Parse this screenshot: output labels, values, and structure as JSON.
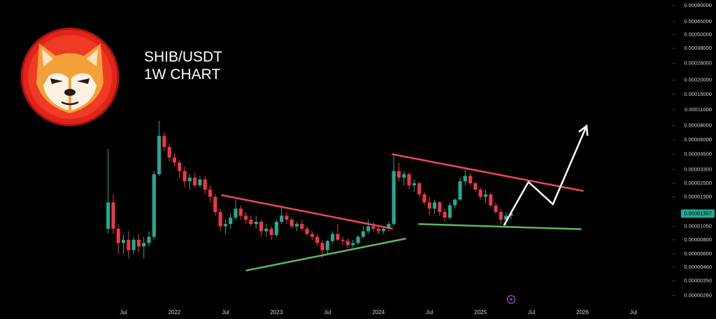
{
  "chart_data": {
    "type": "candlestick",
    "title": "SHIB/USDT",
    "subtitle": "1W CHART",
    "log_scale": true,
    "up_color": "#22ab94",
    "down_color": "#f23645",
    "xlim": [
      2020.29,
      2026.87
    ],
    "xticks": [
      {
        "value": 2021.5,
        "label": "Jul"
      },
      2022,
      {
        "value": 2022.5,
        "label": "Jul"
      },
      2023,
      {
        "value": 2023.5,
        "label": "Jul"
      },
      2024,
      {
        "value": 2024.5,
        "label": "Jul"
      },
      2025,
      {
        "value": 2025.5,
        "label": "Jul"
      },
      2026,
      {
        "value": 2026.5,
        "label": "Jul"
      }
    ],
    "ylim": [
      2.03e-06,
      0.001007
    ],
    "yticks": [
      {
        "value": 0.0009,
        "label": "0.00090000"
      },
      {
        "value": 0.00065,
        "label": "0.00065000"
      },
      {
        "value": 0.0005,
        "label": "0.00050000"
      },
      {
        "value": 0.00038,
        "label": "0.00038000"
      },
      {
        "value": 0.00028,
        "label": "0.00028000"
      },
      {
        "value": 0.0002,
        "label": "0.00020000"
      },
      {
        "value": 0.00015,
        "label": "0.00015000"
      },
      {
        "value": 0.00011,
        "label": "0.00011000"
      },
      {
        "value": 8e-05,
        "label": "0.00008000"
      },
      {
        "value": 6e-05,
        "label": "0.00006000"
      },
      {
        "value": 4.5e-05,
        "label": "0.00004500"
      },
      {
        "value": 3.3e-05,
        "label": "0.00003300"
      },
      {
        "value": 2.5e-05,
        "label": "0.00002500"
      },
      {
        "value": 1.9e-05,
        "label": "0.00001900"
      },
      {
        "value": 1.05e-05,
        "label": "0.00001050"
      },
      {
        "value": 8e-06,
        "label": "0.00000800"
      },
      {
        "value": 6e-06,
        "label": "0.00000600"
      },
      {
        "value": 4.6e-06,
        "label": "0.00000460"
      },
      {
        "value": 3.5e-06,
        "label": "0.00000350"
      },
      {
        "value": 2.6e-06,
        "label": "0.00000260"
      }
    ],
    "last_price_label": "0.00001357",
    "x": [
      2021.35,
      2021.4,
      2021.45,
      2021.5,
      2021.55,
      2021.6,
      2021.65,
      2021.7,
      2021.75,
      2021.8,
      2021.85,
      2021.9,
      2021.95,
      2022.0,
      2022.05,
      2022.1,
      2022.15,
      2022.2,
      2022.25,
      2022.3,
      2022.35,
      2022.4,
      2022.45,
      2022.5,
      2022.55,
      2022.6,
      2022.65,
      2022.7,
      2022.75,
      2022.8,
      2022.85,
      2022.9,
      2022.95,
      2023.0,
      2023.05,
      2023.1,
      2023.15,
      2023.2,
      2023.25,
      2023.3,
      2023.35,
      2023.4,
      2023.45,
      2023.5,
      2023.55,
      2023.6,
      2023.65,
      2023.7,
      2023.75,
      2023.8,
      2023.85,
      2023.9,
      2023.95,
      2024.0,
      2024.05,
      2024.1,
      2024.15,
      2024.2,
      2024.25,
      2024.3,
      2024.35,
      2024.4,
      2024.45,
      2024.5,
      2024.55,
      2024.6,
      2024.65,
      2024.7,
      2024.75,
      2024.8,
      2024.85,
      2024.9,
      2024.95,
      2025.0,
      2025.05,
      2025.1,
      2025.15,
      2025.2,
      2025.25,
      2025.3
    ],
    "open": [
      1e-05,
      1.7e-05,
      1e-05,
      7.5e-06,
      8e-06,
      6.5e-06,
      8e-06,
      7e-06,
      7.5e-06,
      8.5e-06,
      3e-05,
      6.5e-05,
      5.2e-05,
      4.2e-05,
      3.8e-05,
      3.2e-05,
      2.6e-05,
      2.8e-05,
      2.4e-05,
      2.7e-05,
      2.2e-05,
      1.9e-05,
      1.4e-05,
      1.05e-05,
      1.1e-05,
      1.25e-05,
      1.5e-05,
      1.3e-05,
      1.2e-05,
      1.1e-05,
      1.15e-05,
      9.5e-06,
      1e-05,
      8.8e-06,
      1.15e-05,
      1.3e-05,
      1.2e-05,
      1.05e-05,
      1.1e-05,
      1e-05,
      9e-06,
      8.5e-06,
      7.5e-06,
      6.5e-06,
      7.8e-06,
      9e-06,
      8e-06,
      7.8e-06,
      7.2e-06,
      7.5e-06,
      8.5e-06,
      9.5e-06,
      1.05e-05,
      1e-05,
      9.5e-06,
      1e-05,
      1.1e-05,
      3.2e-05,
      2.8e-05,
      3e-05,
      2.4e-05,
      2.5e-05,
      2e-05,
      1.7e-05,
      1.5e-05,
      1.7e-05,
      1.4e-05,
      1.25e-05,
      1.6e-05,
      1.8e-05,
      2.6e-05,
      2.9e-05,
      2.5e-05,
      2.2e-05,
      1.9e-05,
      2e-05,
      1.6e-05,
      1.4e-05,
      1.2e-05,
      1.3e-05
    ],
    "high": [
      5e-05,
      2e-05,
      1.1e-05,
      9e-06,
      9.5e-06,
      8.5e-06,
      9e-06,
      8.5e-06,
      9.5e-06,
      3.2e-05,
      8.8e-05,
      7e-05,
      5.6e-05,
      4.6e-05,
      4e-05,
      3.5e-05,
      3e-05,
      3.1e-05,
      2.9e-05,
      2.9e-05,
      2.4e-05,
      2e-05,
      1.5e-05,
      1.2e-05,
      1.35e-05,
      1.8e-05,
      1.6e-05,
      1.4e-05,
      1.3e-05,
      1.3e-05,
      1.2e-05,
      1.1e-05,
      1.05e-05,
      1.2e-05,
      1.6e-05,
      1.4e-05,
      1.25e-05,
      1.15e-05,
      1.2e-05,
      1.05e-05,
      9.5e-06,
      9e-06,
      8e-06,
      8e-06,
      9.5e-06,
      1.1e-05,
      8.5e-06,
      8.2e-06,
      8e-06,
      8.8e-06,
      1.05e-05,
      1.2e-05,
      1.15e-05,
      1.05e-05,
      1.05e-05,
      1.15e-05,
      4.5e-05,
      3.8e-05,
      3.2e-05,
      3.1e-05,
      2.7e-05,
      2.6e-05,
      2.1e-05,
      1.9e-05,
      1.8e-05,
      1.75e-05,
      1.5e-05,
      1.7e-05,
      1.85e-05,
      2.8e-05,
      3.3e-05,
      3.1e-05,
      2.6e-05,
      2.3e-05,
      2.2e-05,
      2.05e-05,
      1.7e-05,
      1.5e-05,
      1.4e-05,
      1.45e-05
    ],
    "low": [
      9e-06,
      9e-06,
      6e-06,
      6e-06,
      5.5e-06,
      6e-06,
      6.2e-06,
      5.5e-06,
      7e-06,
      8e-06,
      2.9e-05,
      4.8e-05,
      3.9e-05,
      3.5e-05,
      2.8e-05,
      2.3e-05,
      2.2e-05,
      2.3e-05,
      2.3e-05,
      2e-05,
      1.7e-05,
      1.3e-05,
      9.5e-06,
      9e-06,
      1e-05,
      1.2e-05,
      1.2e-05,
      1.1e-05,
      1.05e-05,
      1e-05,
      8.5e-06,
      8.5e-06,
      8e-06,
      8.5e-06,
      1.1e-05,
      1.1e-05,
      1e-05,
      9.5e-06,
      9.5e-06,
      8.5e-06,
      8e-06,
      7e-06,
      5.5e-06,
      6e-06,
      7.5e-06,
      7.8e-06,
      7.2e-06,
      6.8e-06,
      6.8e-06,
      7.2e-06,
      8.2e-06,
      9e-06,
      9.5e-06,
      9e-06,
      9e-06,
      9.5e-06,
      1.05e-05,
      2.6e-05,
      2.4e-05,
      2.2e-05,
      2.1e-05,
      1.9e-05,
      1.6e-05,
      1.3e-05,
      1.35e-05,
      1.3e-05,
      1.15e-05,
      1.2e-05,
      1.5e-05,
      1.75e-05,
      2.4e-05,
      2.4e-05,
      2.1e-05,
      1.8e-05,
      1.7e-05,
      1.55e-05,
      1.35e-05,
      1.1e-05,
      1.05e-05,
      1.2e-05
    ],
    "close": [
      1.7e-05,
      1e-05,
      7.5e-06,
      8e-06,
      6.5e-06,
      8e-06,
      7e-06,
      7.5e-06,
      8.5e-06,
      3e-05,
      6.5e-05,
      5.2e-05,
      4.2e-05,
      3.8e-05,
      3.2e-05,
      2.6e-05,
      2.8e-05,
      2.4e-05,
      2.7e-05,
      2.2e-05,
      1.9e-05,
      1.4e-05,
      1.05e-05,
      1.1e-05,
      1.25e-05,
      1.5e-05,
      1.3e-05,
      1.2e-05,
      1.1e-05,
      1.15e-05,
      9.5e-06,
      1e-05,
      8.8e-06,
      1.15e-05,
      1.3e-05,
      1.2e-05,
      1.05e-05,
      1.1e-05,
      1e-05,
      9e-06,
      8.5e-06,
      7.5e-06,
      6.5e-06,
      7.8e-06,
      9e-06,
      8e-06,
      7.8e-06,
      7.2e-06,
      7.5e-06,
      8.5e-06,
      9.5e-06,
      1.05e-05,
      1e-05,
      9.5e-06,
      1e-05,
      1.1e-05,
      3.2e-05,
      2.8e-05,
      3e-05,
      2.4e-05,
      2.5e-05,
      2e-05,
      1.7e-05,
      1.5e-05,
      1.7e-05,
      1.4e-05,
      1.25e-05,
      1.6e-05,
      1.8e-05,
      2.6e-05,
      2.9e-05,
      2.5e-05,
      2.2e-05,
      1.9e-05,
      2e-05,
      1.6e-05,
      1.4e-05,
      1.2e-05,
      1.3e-05,
      1.357e-05
    ],
    "trend_lines": [
      {
        "color": "#f0475a",
        "x": [
          2022.46,
          2024.14
        ],
        "y": [
          1.97e-05,
          1e-05
        ]
      },
      {
        "color": "#5cb85c",
        "x": [
          2022.7,
          2024.27
        ],
        "y": [
          4.3e-06,
          8.2e-06
        ]
      },
      {
        "color": "#f0475a",
        "x": [
          2024.13,
          2026.01
        ],
        "y": [
          4.5e-05,
          2.14e-05
        ]
      },
      {
        "color": "#5cb85c",
        "x": [
          2024.39,
          2025.99
        ],
        "y": [
          1.1e-05,
          9.9e-06
        ]
      }
    ],
    "projection": {
      "color": "#ffffff",
      "x": [
        2025.23,
        2025.47,
        2025.71,
        2026.04
      ],
      "y": [
        1.07e-05,
        2.57e-05,
        1.64e-05,
        7.95e-05
      ]
    }
  }
}
